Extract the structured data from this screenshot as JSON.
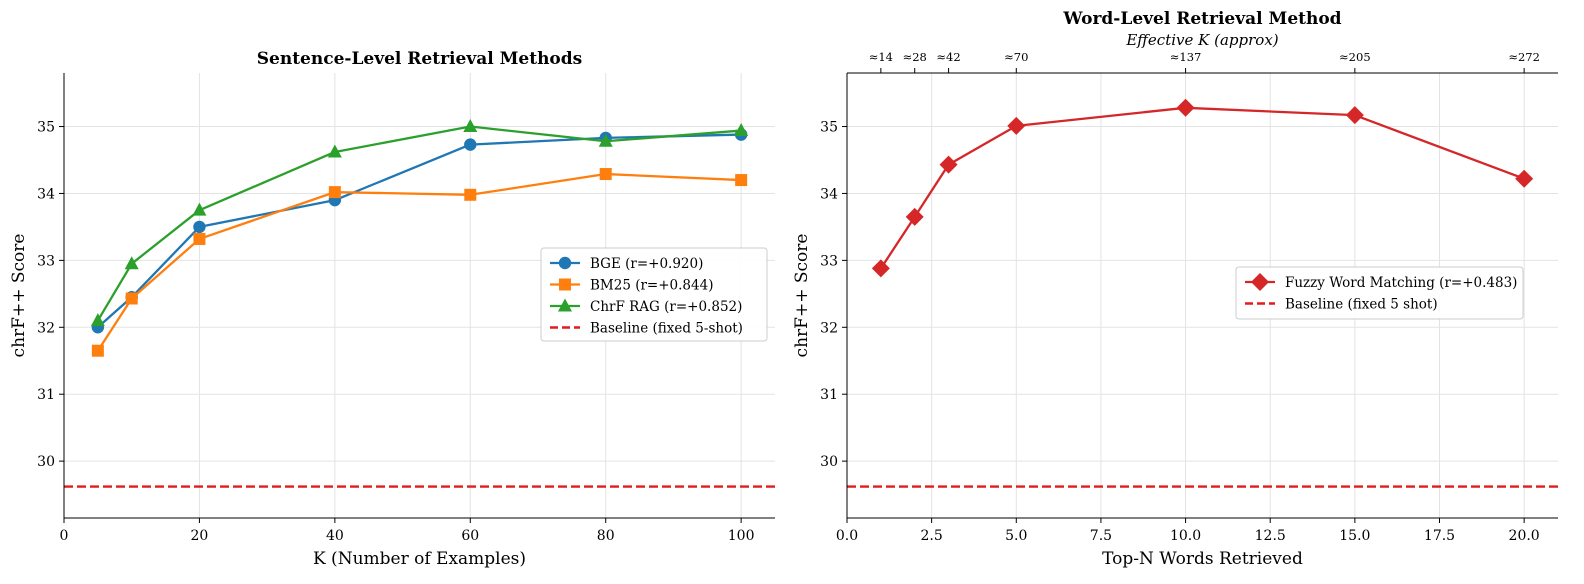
{
  "chart_data": [
    {
      "type": "line",
      "title": "Sentence-Level Retrieval Methods",
      "xlabel": "K (Number of Examples)",
      "ylabel": "chrF++ Score",
      "xlim": [
        0,
        105
      ],
      "ylim": [
        29.15,
        35.8
      ],
      "xticks": [
        0,
        20,
        40,
        60,
        80,
        100
      ],
      "xtick_labels": [
        "0",
        "20",
        "40",
        "60",
        "80",
        "100"
      ],
      "yticks": [
        30,
        31,
        32,
        33,
        34,
        35
      ],
      "ytick_labels": [
        "30",
        "31",
        "32",
        "33",
        "34",
        "35"
      ],
      "grid": true,
      "legend_position": "center-right",
      "series": [
        {
          "name": "BGE (r=+0.920)",
          "color": "#1f77b4",
          "marker": "circle",
          "x": [
            5,
            10,
            20,
            40,
            60,
            80,
            100
          ],
          "values": [
            32.0,
            32.45,
            33.5,
            33.9,
            34.73,
            34.83,
            34.88
          ]
        },
        {
          "name": "BM25 (r=+0.844)",
          "color": "#ff7f0e",
          "marker": "square",
          "x": [
            5,
            10,
            20,
            40,
            60,
            80,
            100
          ],
          "values": [
            31.65,
            32.43,
            33.32,
            34.02,
            33.98,
            34.29,
            34.2
          ]
        },
        {
          "name": "ChrF RAG (r=+0.852)",
          "color": "#2ca02c",
          "marker": "triangle",
          "x": [
            5,
            10,
            20,
            40,
            60,
            80,
            100
          ],
          "values": [
            32.1,
            32.95,
            33.75,
            34.62,
            35.0,
            34.78,
            34.94
          ]
        }
      ],
      "baseline": {
        "name": "Baseline (fixed 5-shot)",
        "value": 29.62,
        "color": "#e41a1c"
      }
    },
    {
      "type": "line",
      "title": "Word-Level Retrieval Method",
      "subtitle": "Effective K (approx)",
      "xlabel": "Top-N Words Retrieved",
      "ylabel": "chrF++ Score",
      "xlim": [
        0,
        21
      ],
      "ylim": [
        29.15,
        35.8
      ],
      "xticks": [
        0,
        2.5,
        5,
        7.5,
        10,
        12.5,
        15,
        17.5,
        20
      ],
      "xtick_labels": [
        "0.0",
        "2.5",
        "5.0",
        "7.5",
        "10.0",
        "12.5",
        "15.0",
        "17.5",
        "20.0"
      ],
      "yticks": [
        30,
        31,
        32,
        33,
        34,
        35
      ],
      "ytick_labels": [
        "30",
        "31",
        "32",
        "33",
        "34",
        "35"
      ],
      "top_axis": {
        "ticks": [
          1,
          2,
          3,
          5,
          10,
          15,
          20
        ],
        "labels": [
          "≈14",
          "≈28",
          "≈42",
          "≈70",
          "≈137",
          "≈205",
          "≈272"
        ]
      },
      "grid": true,
      "legend_position": "center-right",
      "series": [
        {
          "name": "Fuzzy Word Matching (r=+0.483)",
          "color": "#d62728",
          "marker": "diamond",
          "x": [
            1,
            2,
            3,
            5,
            10,
            15,
            20
          ],
          "values": [
            32.88,
            33.65,
            34.43,
            35.01,
            35.28,
            35.17,
            34.22
          ]
        }
      ],
      "baseline": {
        "name": "Baseline (fixed 5 shot)",
        "value": 29.62,
        "color": "#e41a1c"
      }
    }
  ]
}
